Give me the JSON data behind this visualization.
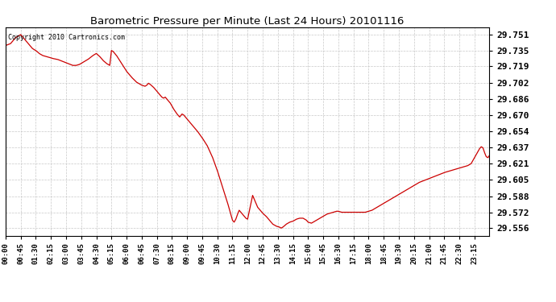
{
  "title": "Barometric Pressure per Minute (Last 24 Hours) 20101116",
  "copyright_text": "Copyright 2010 Cartronics.com",
  "line_color": "#cc0000",
  "background_color": "#ffffff",
  "grid_color": "#c8c8c8",
  "yticks": [
    29.556,
    29.572,
    29.588,
    29.605,
    29.621,
    29.637,
    29.654,
    29.67,
    29.686,
    29.702,
    29.719,
    29.735,
    29.751
  ],
  "ylim": [
    29.5485,
    29.7585
  ],
  "xtick_labels": [
    "00:00",
    "00:45",
    "01:30",
    "02:15",
    "03:00",
    "03:45",
    "04:30",
    "05:15",
    "06:00",
    "06:45",
    "07:30",
    "08:15",
    "09:00",
    "09:45",
    "10:30",
    "11:15",
    "12:00",
    "12:45",
    "13:30",
    "14:15",
    "15:00",
    "15:45",
    "16:30",
    "17:15",
    "18:00",
    "18:45",
    "19:30",
    "20:15",
    "21:00",
    "21:45",
    "22:30",
    "23:15"
  ],
  "control_points": [
    [
      0,
      29.74
    ],
    [
      15,
      29.742
    ],
    [
      30,
      29.748
    ],
    [
      45,
      29.751
    ],
    [
      55,
      29.747
    ],
    [
      65,
      29.743
    ],
    [
      80,
      29.737
    ],
    [
      90,
      29.735
    ],
    [
      100,
      29.732
    ],
    [
      110,
      29.73
    ],
    [
      120,
      29.729
    ],
    [
      130,
      29.728
    ],
    [
      140,
      29.727
    ],
    [
      155,
      29.726
    ],
    [
      170,
      29.724
    ],
    [
      185,
      29.722
    ],
    [
      200,
      29.72
    ],
    [
      210,
      29.72
    ],
    [
      220,
      29.721
    ],
    [
      230,
      29.723
    ],
    [
      245,
      29.726
    ],
    [
      260,
      29.73
    ],
    [
      270,
      29.732
    ],
    [
      280,
      29.729
    ],
    [
      290,
      29.725
    ],
    [
      300,
      29.722
    ],
    [
      310,
      29.72
    ],
    [
      315,
      29.735
    ],
    [
      320,
      29.734
    ],
    [
      330,
      29.73
    ],
    [
      345,
      29.722
    ],
    [
      360,
      29.714
    ],
    [
      375,
      29.708
    ],
    [
      390,
      29.703
    ],
    [
      405,
      29.7
    ],
    [
      415,
      29.699
    ],
    [
      420,
      29.7
    ],
    [
      425,
      29.702
    ],
    [
      430,
      29.701
    ],
    [
      440,
      29.698
    ],
    [
      450,
      29.694
    ],
    [
      460,
      29.69
    ],
    [
      465,
      29.688
    ],
    [
      470,
      29.687
    ],
    [
      475,
      29.688
    ],
    [
      480,
      29.686
    ],
    [
      490,
      29.682
    ],
    [
      500,
      29.676
    ],
    [
      510,
      29.671
    ],
    [
      518,
      29.668
    ],
    [
      525,
      29.671
    ],
    [
      530,
      29.67
    ],
    [
      540,
      29.666
    ],
    [
      555,
      29.66
    ],
    [
      570,
      29.654
    ],
    [
      585,
      29.647
    ],
    [
      600,
      29.639
    ],
    [
      615,
      29.628
    ],
    [
      630,
      29.614
    ],
    [
      645,
      29.598
    ],
    [
      660,
      29.582
    ],
    [
      670,
      29.57
    ],
    [
      675,
      29.564
    ],
    [
      680,
      29.562
    ],
    [
      685,
      29.565
    ],
    [
      690,
      29.57
    ],
    [
      695,
      29.574
    ],
    [
      700,
      29.572
    ],
    [
      705,
      29.57
    ],
    [
      710,
      29.568
    ],
    [
      715,
      29.566
    ],
    [
      720,
      29.565
    ],
    [
      730,
      29.581
    ],
    [
      735,
      29.589
    ],
    [
      740,
      29.585
    ],
    [
      745,
      29.581
    ],
    [
      750,
      29.577
    ],
    [
      755,
      29.575
    ],
    [
      760,
      29.573
    ],
    [
      765,
      29.571
    ],
    [
      775,
      29.568
    ],
    [
      785,
      29.564
    ],
    [
      795,
      29.56
    ],
    [
      805,
      29.558
    ],
    [
      815,
      29.557
    ],
    [
      820,
      29.556
    ],
    [
      825,
      29.557
    ],
    [
      835,
      29.56
    ],
    [
      845,
      29.562
    ],
    [
      855,
      29.563
    ],
    [
      865,
      29.565
    ],
    [
      875,
      29.566
    ],
    [
      885,
      29.566
    ],
    [
      895,
      29.564
    ],
    [
      900,
      29.562
    ],
    [
      910,
      29.561
    ],
    [
      915,
      29.562
    ],
    [
      925,
      29.564
    ],
    [
      935,
      29.566
    ],
    [
      945,
      29.568
    ],
    [
      955,
      29.57
    ],
    [
      965,
      29.571
    ],
    [
      975,
      29.572
    ],
    [
      985,
      29.573
    ],
    [
      990,
      29.573
    ],
    [
      1000,
      29.572
    ],
    [
      1010,
      29.572
    ],
    [
      1020,
      29.572
    ],
    [
      1030,
      29.572
    ],
    [
      1040,
      29.572
    ],
    [
      1050,
      29.572
    ],
    [
      1060,
      29.572
    ],
    [
      1070,
      29.572
    ],
    [
      1080,
      29.573
    ],
    [
      1090,
      29.574
    ],
    [
      1100,
      29.576
    ],
    [
      1110,
      29.578
    ],
    [
      1120,
      29.58
    ],
    [
      1130,
      29.582
    ],
    [
      1140,
      29.584
    ],
    [
      1155,
      29.587
    ],
    [
      1170,
      29.59
    ],
    [
      1185,
      29.593
    ],
    [
      1200,
      29.596
    ],
    [
      1215,
      29.599
    ],
    [
      1230,
      29.602
    ],
    [
      1245,
      29.604
    ],
    [
      1260,
      29.606
    ],
    [
      1275,
      29.608
    ],
    [
      1290,
      29.61
    ],
    [
      1305,
      29.612
    ],
    [
      1315,
      29.613
    ],
    [
      1325,
      29.614
    ],
    [
      1335,
      29.615
    ],
    [
      1345,
      29.616
    ],
    [
      1355,
      29.617
    ],
    [
      1365,
      29.618
    ],
    [
      1375,
      29.619
    ],
    [
      1385,
      29.621
    ],
    [
      1390,
      29.624
    ],
    [
      1395,
      29.627
    ],
    [
      1400,
      29.63
    ],
    [
      1405,
      29.633
    ],
    [
      1410,
      29.636
    ],
    [
      1415,
      29.638
    ],
    [
      1420,
      29.637
    ],
    [
      1425,
      29.632
    ],
    [
      1430,
      29.628
    ],
    [
      1435,
      29.627
    ],
    [
      1439,
      29.629
    ]
  ]
}
